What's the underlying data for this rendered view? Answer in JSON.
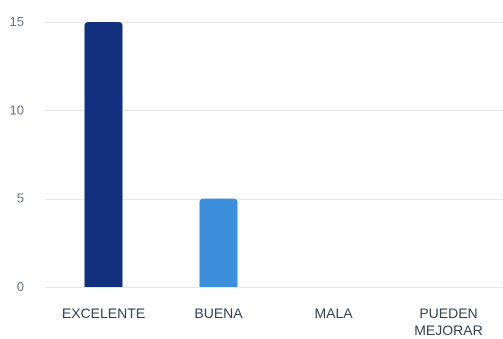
{
  "chart_data": {
    "type": "bar",
    "categories": [
      "EXCELENTE",
      "BUENA",
      "MALA",
      "PUEDEN MEJORAR"
    ],
    "category_label_lines": [
      [
        "EXCELENTE"
      ],
      [
        "BUENA"
      ],
      [
        "MALA"
      ],
      [
        "PUEDEN",
        "MEJORAR"
      ]
    ],
    "values": [
      15,
      5,
      0,
      0
    ],
    "bar_colors": [
      "#13307e",
      "#3b8fdb",
      "#3b8fdb",
      "#3b8fdb"
    ],
    "title": "",
    "xlabel": "",
    "ylabel": "",
    "ylim": [
      0,
      15
    ],
    "yticks": [
      0,
      5,
      10,
      15
    ],
    "grid": true,
    "legend": "none"
  }
}
